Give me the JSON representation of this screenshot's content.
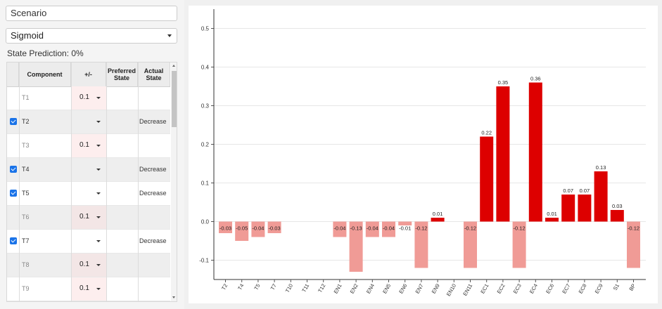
{
  "scenario": {
    "value": "Scenario"
  },
  "activation": {
    "selected": "Sigmoid"
  },
  "state_prediction": "State Prediction: 0%",
  "grid": {
    "headers": {
      "component": "Component",
      "plusminus": "+/-",
      "preferred_line1": "Preferred",
      "preferred_line2": "State",
      "actual_line1": "Actual",
      "actual_line2": "State"
    },
    "rows": [
      {
        "component": "T1",
        "checked": false,
        "value": "0.1",
        "actual": ""
      },
      {
        "component": "T2",
        "checked": true,
        "value": "",
        "actual": "Decrease"
      },
      {
        "component": "T3",
        "checked": false,
        "value": "0.1",
        "actual": ""
      },
      {
        "component": "T4",
        "checked": true,
        "value": "",
        "actual": "Decrease"
      },
      {
        "component": "T5",
        "checked": true,
        "value": "",
        "actual": "Decrease"
      },
      {
        "component": "T6",
        "checked": false,
        "value": "0.1",
        "actual": ""
      },
      {
        "component": "T7",
        "checked": true,
        "value": "",
        "actual": "Decrease"
      },
      {
        "component": "T8",
        "checked": false,
        "value": "0.1",
        "actual": ""
      },
      {
        "component": "T9",
        "checked": false,
        "value": "0.1",
        "actual": ""
      }
    ]
  },
  "colors": {
    "positive": "#dd0000",
    "negative": "#f09b96",
    "checkbox": "#1a73e8"
  },
  "chart_data": {
    "type": "bar",
    "categories": [
      "T2",
      "T4",
      "T5",
      "T7",
      "T10",
      "T11",
      "T12",
      "EN1",
      "EN2",
      "EN4",
      "EN5",
      "EN6",
      "EN7",
      "EN9",
      "EN10",
      "EN11",
      "EC1",
      "EC2",
      "EC3",
      "EC4",
      "EC6",
      "EC7",
      "EC8",
      "EC9",
      "S1",
      "BP"
    ],
    "values": [
      -0.03,
      -0.05,
      -0.04,
      -0.03,
      0,
      0,
      0,
      -0.04,
      -0.13,
      -0.04,
      -0.04,
      -0.01,
      -0.12,
      0.01,
      0,
      -0.12,
      0.22,
      0.35,
      -0.12,
      0.36,
      0.01,
      0.07,
      0.07,
      0.13,
      0.03,
      -0.12
    ],
    "labels": [
      "-0.03",
      "-0.05",
      "-0.04",
      "-0.03",
      "",
      "",
      "",
      "-0.04",
      "-0.13",
      "-0.04",
      "-0.04",
      "-0.01",
      "-0.12",
      "0.01",
      "",
      "-0.12",
      "0.22",
      "0.35",
      "-0.12",
      "0.36",
      "0.01",
      "0.07",
      "0.07",
      "0.13",
      "0.03",
      "-0.12"
    ],
    "yticks": [
      -0.1,
      0.0,
      0.1,
      0.2,
      0.3,
      0.4,
      0.5
    ],
    "ytick_labels": [
      "-0.1",
      "0.0",
      "0.1",
      "0.2",
      "0.3",
      "0.4",
      "0.5"
    ],
    "ylim": [
      -0.15,
      0.55
    ],
    "grid": true
  }
}
